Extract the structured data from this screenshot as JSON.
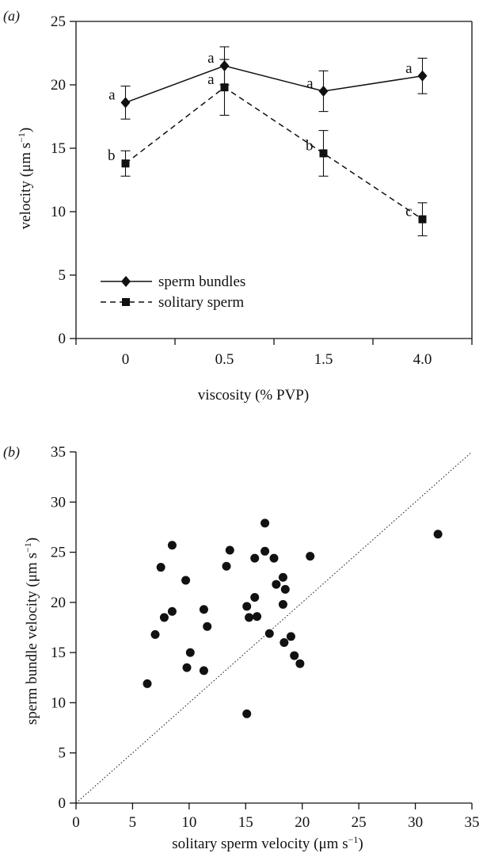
{
  "chart_data": [
    {
      "panel": "(a)",
      "type": "line",
      "categories": [
        "0",
        "0.5",
        "1.5",
        "4.0"
      ],
      "xlabel": "viscosity (% PVP)",
      "ylabel": "velocity (μm s",
      "ylabel_sup": "−1",
      "ylabel_close": ")",
      "ylim": [
        0,
        25
      ],
      "yticks": [
        "0",
        "5",
        "10",
        "15",
        "20",
        "25"
      ],
      "grid": false,
      "legend_position": "bottom-left",
      "series": [
        {
          "name": "sperm bundles",
          "line_style": "solid",
          "marker": "diamond",
          "values": [
            18.6,
            21.5,
            19.5,
            20.7
          ],
          "error": [
            1.3,
            1.5,
            1.6,
            1.4
          ],
          "letters": [
            "a",
            "a",
            "a",
            "a"
          ]
        },
        {
          "name": "solitary sperm",
          "line_style": "dashed",
          "marker": "square",
          "values": [
            13.8,
            19.8,
            14.6,
            9.4
          ],
          "error": [
            1.0,
            2.2,
            1.8,
            1.3
          ],
          "letters": [
            "b",
            "a",
            "b",
            "c"
          ]
        }
      ]
    },
    {
      "panel": "(b)",
      "type": "scatter",
      "xlabel": "solitary sperm velocity (μm s",
      "xlabel_sup": "−1",
      "xlabel_close": ")",
      "ylabel": "sperm bundle velocity  (μm s",
      "ylabel_sup": "−1",
      "ylabel_close": ")",
      "xlim": [
        0,
        35
      ],
      "ylim": [
        0,
        35
      ],
      "xticks": [
        "0",
        "5",
        "10",
        "15",
        "20",
        "25",
        "30",
        "35"
      ],
      "yticks": [
        "0",
        "5",
        "10",
        "15",
        "20",
        "25",
        "30",
        "35"
      ],
      "grid": false,
      "reference_line": "y = x (dotted)",
      "points": [
        [
          6.3,
          11.9
        ],
        [
          7.0,
          16.8
        ],
        [
          7.5,
          23.5
        ],
        [
          7.8,
          18.5
        ],
        [
          8.5,
          19.1
        ],
        [
          8.5,
          25.7
        ],
        [
          9.7,
          22.2
        ],
        [
          9.8,
          13.5
        ],
        [
          10.1,
          15.0
        ],
        [
          11.3,
          19.3
        ],
        [
          11.3,
          13.2
        ],
        [
          11.6,
          17.6
        ],
        [
          13.3,
          23.6
        ],
        [
          13.6,
          25.2
        ],
        [
          15.1,
          19.6
        ],
        [
          15.1,
          8.9
        ],
        [
          15.3,
          18.5
        ],
        [
          15.8,
          20.5
        ],
        [
          15.8,
          24.4
        ],
        [
          16.0,
          18.6
        ],
        [
          16.7,
          27.9
        ],
        [
          16.7,
          25.1
        ],
        [
          17.1,
          16.9
        ],
        [
          17.5,
          24.4
        ],
        [
          17.7,
          21.8
        ],
        [
          18.3,
          22.5
        ],
        [
          18.3,
          19.8
        ],
        [
          18.4,
          16.0
        ],
        [
          18.5,
          21.3
        ],
        [
          19.0,
          16.6
        ],
        [
          19.3,
          14.7
        ],
        [
          19.8,
          13.9
        ],
        [
          20.7,
          24.6
        ],
        [
          32.0,
          26.8
        ]
      ]
    }
  ]
}
